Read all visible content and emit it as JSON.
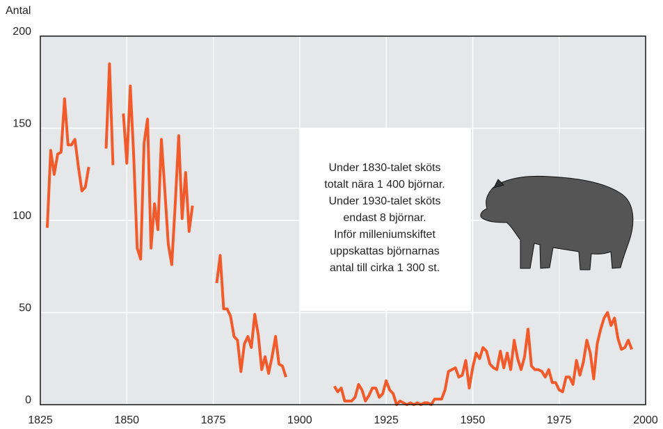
{
  "chart_data": {
    "type": "line",
    "y_label": "Antal",
    "annotation": [
      "Under 1830-talet sköts",
      "totalt nära 1 400 björnar.",
      "Under 1930-talet sköts",
      "endast 8 björnar.",
      "Inför milleniumskiftet",
      "uppskattas björnarnas",
      "antal till cirka 1 300 st."
    ],
    "xlim": [
      1825,
      2000
    ],
    "xticks": [
      1825,
      1850,
      1875,
      1900,
      1925,
      1950,
      1975,
      2000
    ],
    "ylim": [
      0,
      200
    ],
    "yticks": [
      0,
      50,
      100,
      150,
      200
    ],
    "grid": true,
    "x": [
      1827,
      1828,
      1829,
      1830,
      1831,
      1832,
      1833,
      1834,
      1835,
      1836,
      1837,
      1838,
      1839,
      1840,
      1841,
      1842,
      1843,
      1844,
      1845,
      1846,
      1847,
      1848,
      1849,
      1850,
      1851,
      1852,
      1853,
      1854,
      1855,
      1856,
      1857,
      1858,
      1859,
      1860,
      1861,
      1862,
      1863,
      1864,
      1865,
      1866,
      1867,
      1868,
      1869,
      1870,
      1871,
      1872,
      1873,
      1874,
      1875,
      1876,
      1877,
      1878,
      1879,
      1880,
      1881,
      1882,
      1883,
      1884,
      1885,
      1886,
      1887,
      1888,
      1889,
      1890,
      1891,
      1892,
      1893,
      1894,
      1895,
      1896,
      1897,
      1898,
      1899,
      1900,
      1901,
      1902,
      1903,
      1904,
      1905,
      1906,
      1907,
      1908,
      1909,
      1910,
      1911,
      1912,
      1913,
      1914,
      1915,
      1916,
      1917,
      1918,
      1919,
      1920,
      1921,
      1922,
      1923,
      1924,
      1925,
      1926,
      1927,
      1928,
      1929,
      1930,
      1931,
      1932,
      1933,
      1934,
      1935,
      1936,
      1937,
      1938,
      1939,
      1940,
      1941,
      1942,
      1943,
      1944,
      1945,
      1946,
      1947,
      1948,
      1949,
      1950,
      1951,
      1952,
      1953,
      1954,
      1955,
      1956,
      1957,
      1958,
      1959,
      1960,
      1961,
      1962,
      1963,
      1964,
      1965,
      1966,
      1967,
      1968,
      1969,
      1970,
      1971,
      1972,
      1973,
      1974,
      1975,
      1976,
      1977,
      1978,
      1979,
      1980,
      1981,
      1982,
      1983,
      1984,
      1985,
      1986,
      1987,
      1988,
      1989,
      1990,
      1991,
      1992,
      1993,
      1994,
      1995,
      1996
    ],
    "series": [
      {
        "color": "#f15a2b",
        "values": [
          96,
          138,
          125,
          136,
          137,
          166,
          141,
          141,
          144,
          129,
          116,
          118,
          129,
          null,
          null,
          null,
          null,
          139,
          185,
          130,
          null,
          null,
          158,
          131,
          173,
          135,
          85,
          79,
          142,
          155,
          85,
          109,
          95,
          144,
          116,
          87,
          76,
          109,
          146,
          101,
          126,
          94,
          108,
          null,
          null,
          null,
          null,
          null,
          null,
          66,
          81,
          52,
          52,
          48,
          37,
          35,
          18,
          33,
          37,
          31,
          49,
          38,
          19,
          26,
          17,
          26,
          37,
          22,
          21,
          15,
          null,
          null,
          null,
          null,
          null,
          null,
          null,
          null,
          null,
          null,
          null,
          null,
          null,
          10,
          7,
          9,
          2,
          2,
          2,
          4,
          11,
          8,
          2,
          5,
          9,
          9,
          4,
          6,
          13,
          8,
          6,
          0,
          2,
          1,
          0,
          1,
          0,
          1,
          0,
          1,
          1,
          0,
          3,
          3,
          3,
          8,
          18,
          19,
          20,
          15,
          16,
          24,
          9,
          20,
          28,
          25,
          31,
          29,
          22,
          20,
          19,
          29,
          20,
          28,
          19,
          35,
          25,
          19,
          26,
          41,
          21,
          19,
          19,
          18,
          15,
          19,
          12,
          12,
          8,
          7,
          15,
          15,
          11,
          24,
          16,
          23,
          35,
          28,
          14,
          33,
          41,
          47,
          50,
          43,
          47,
          36,
          30,
          31,
          35,
          30
        ]
      }
    ]
  }
}
